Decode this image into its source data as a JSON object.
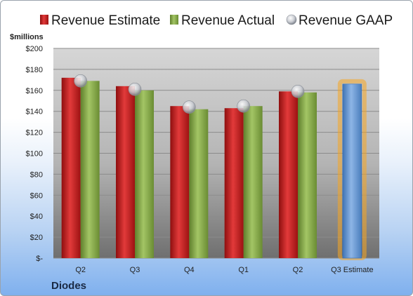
{
  "company": "Diodes",
  "chart_data": {
    "type": "bar",
    "unit_label": "$millions",
    "categories": [
      "Q2",
      "Q3",
      "Q4",
      "Q1",
      "Q2",
      "Q3 Estimate"
    ],
    "series": [
      {
        "name": "Revenue Estimate",
        "color": "#cc1f1f",
        "values": [
          172,
          164,
          145,
          143,
          159,
          null
        ]
      },
      {
        "name": "Revenue Actual",
        "color": "#8cb04a",
        "values": [
          169,
          160,
          142,
          145,
          158,
          null
        ]
      },
      {
        "name": "Revenue GAAP",
        "color": "#c8ccd4",
        "values": [
          169,
          161,
          144,
          145,
          159,
          null
        ]
      }
    ],
    "estimate": {
      "category": "Q3 Estimate",
      "value": 166,
      "color": "#6f9fd6",
      "glow": "#f5a623"
    },
    "ylim": [
      0,
      200
    ],
    "yticks": [
      "$-",
      "$20",
      "$40",
      "$60",
      "$80",
      "$100",
      "$120",
      "$140",
      "$160",
      "$180",
      "$200"
    ],
    "grid": true,
    "legend_position": "top"
  }
}
